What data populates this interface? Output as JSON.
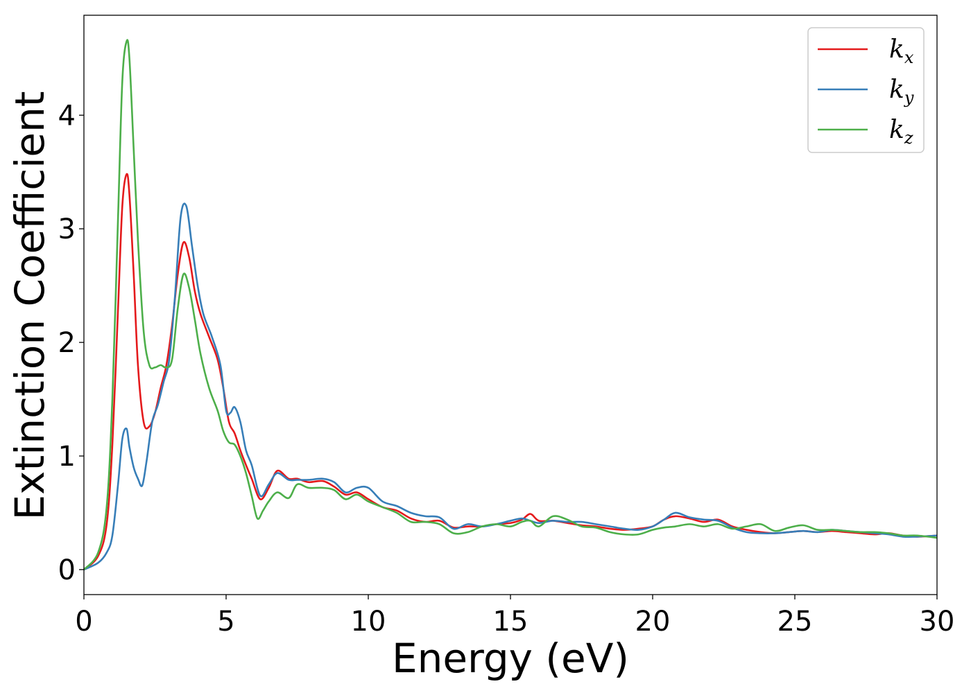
{
  "chart_data": {
    "type": "line",
    "title": "",
    "xlabel": "Energy (eV)",
    "ylabel": "Extinction Coefficient",
    "xlim": [
      0,
      30
    ],
    "ylim": [
      -0.22,
      4.88
    ],
    "xticks": [
      0,
      5,
      10,
      15,
      20,
      25,
      30
    ],
    "xtick_labels": [
      "0",
      "5",
      "10",
      "15",
      "20",
      "25",
      "30"
    ],
    "yticks": [
      0,
      1,
      2,
      3,
      4
    ],
    "ytick_labels": [
      "0",
      "1",
      "2",
      "3",
      "4"
    ],
    "grid": false,
    "legend_position": "top-right",
    "series": [
      {
        "name": "k",
        "subscript": "x",
        "color": "#e41a1c",
        "x": [
          0,
          0.5,
          0.8,
          1.0,
          1.2,
          1.35,
          1.5,
          1.6,
          1.75,
          1.9,
          2.1,
          2.3,
          2.5,
          2.7,
          2.9,
          3.1,
          3.3,
          3.5,
          3.7,
          3.9,
          4.1,
          4.4,
          4.7,
          4.9,
          5.1,
          5.3,
          5.5,
          5.7,
          5.9,
          6.2,
          6.5,
          6.8,
          7.2,
          7.5,
          7.9,
          8.4,
          8.8,
          9.2,
          9.6,
          10.0,
          10.5,
          11.0,
          11.5,
          12.0,
          12.5,
          13.0,
          13.5,
          14.0,
          14.5,
          15.0,
          15.4,
          15.7,
          16.0,
          16.5,
          17.0,
          17.5,
          18.0,
          18.5,
          19.0,
          19.5,
          20.0,
          20.4,
          20.8,
          21.3,
          21.8,
          22.3,
          22.8,
          23.3,
          23.8,
          24.3,
          24.8,
          25.3,
          25.8,
          26.3,
          26.8,
          27.3,
          27.8,
          28.3,
          28.8,
          29.3,
          30.0
        ],
        "values": [
          0.0,
          0.12,
          0.4,
          1.1,
          2.3,
          3.2,
          3.48,
          3.3,
          2.6,
          1.8,
          1.3,
          1.26,
          1.38,
          1.6,
          1.8,
          2.15,
          2.6,
          2.88,
          2.75,
          2.45,
          2.25,
          2.05,
          1.85,
          1.6,
          1.3,
          1.2,
          1.05,
          0.92,
          0.8,
          0.62,
          0.72,
          0.87,
          0.8,
          0.8,
          0.77,
          0.78,
          0.73,
          0.66,
          0.68,
          0.62,
          0.55,
          0.52,
          0.45,
          0.42,
          0.43,
          0.37,
          0.38,
          0.38,
          0.4,
          0.41,
          0.44,
          0.49,
          0.43,
          0.43,
          0.41,
          0.39,
          0.38,
          0.36,
          0.35,
          0.36,
          0.38,
          0.44,
          0.47,
          0.45,
          0.42,
          0.44,
          0.38,
          0.35,
          0.33,
          0.32,
          0.33,
          0.34,
          0.33,
          0.34,
          0.33,
          0.32,
          0.31,
          0.32,
          0.3,
          0.29,
          0.3
        ]
      },
      {
        "name": "k",
        "subscript": "y",
        "color": "#377eb8",
        "x": [
          0,
          0.5,
          0.8,
          1.0,
          1.2,
          1.35,
          1.5,
          1.6,
          1.75,
          1.9,
          2.05,
          2.2,
          2.4,
          2.6,
          2.8,
          3.0,
          3.2,
          3.4,
          3.6,
          3.8,
          4.0,
          4.2,
          4.5,
          4.8,
          5.0,
          5.15,
          5.3,
          5.5,
          5.7,
          5.9,
          6.2,
          6.5,
          6.8,
          7.2,
          7.5,
          7.9,
          8.4,
          8.8,
          9.2,
          9.6,
          10.0,
          10.5,
          11.0,
          11.5,
          12.0,
          12.5,
          13.0,
          13.5,
          14.0,
          14.5,
          15.0,
          15.4,
          15.7,
          16.0,
          16.5,
          17.0,
          17.5,
          18.0,
          18.5,
          19.0,
          19.5,
          20.0,
          20.4,
          20.8,
          21.3,
          21.8,
          22.3,
          22.8,
          23.3,
          23.8,
          24.3,
          24.8,
          25.3,
          25.8,
          26.3,
          26.8,
          27.3,
          27.8,
          28.3,
          28.8,
          29.3,
          30.0
        ],
        "values": [
          0.0,
          0.06,
          0.15,
          0.3,
          0.75,
          1.15,
          1.24,
          1.08,
          0.9,
          0.8,
          0.74,
          0.95,
          1.3,
          1.45,
          1.65,
          1.85,
          2.4,
          3.1,
          3.2,
          2.85,
          2.5,
          2.25,
          2.05,
          1.8,
          1.4,
          1.38,
          1.43,
          1.3,
          1.05,
          0.92,
          0.65,
          0.75,
          0.85,
          0.79,
          0.79,
          0.79,
          0.8,
          0.77,
          0.68,
          0.72,
          0.72,
          0.6,
          0.56,
          0.5,
          0.47,
          0.46,
          0.36,
          0.4,
          0.38,
          0.4,
          0.43,
          0.45,
          0.43,
          0.41,
          0.43,
          0.42,
          0.42,
          0.4,
          0.38,
          0.36,
          0.35,
          0.38,
          0.44,
          0.5,
          0.46,
          0.44,
          0.43,
          0.37,
          0.33,
          0.32,
          0.32,
          0.33,
          0.34,
          0.33,
          0.35,
          0.34,
          0.33,
          0.32,
          0.31,
          0.29,
          0.29,
          0.3
        ]
      },
      {
        "name": "k",
        "subscript": "z",
        "color": "#4daf4a",
        "x": [
          0,
          0.5,
          0.8,
          1.0,
          1.2,
          1.35,
          1.5,
          1.6,
          1.75,
          1.9,
          2.1,
          2.3,
          2.5,
          2.7,
          2.9,
          3.1,
          3.3,
          3.5,
          3.7,
          3.9,
          4.1,
          4.4,
          4.7,
          4.9,
          5.1,
          5.3,
          5.5,
          5.7,
          5.9,
          6.1,
          6.3,
          6.5,
          6.8,
          7.2,
          7.5,
          7.9,
          8.4,
          8.8,
          9.2,
          9.6,
          10.0,
          10.5,
          11.0,
          11.5,
          12.0,
          12.5,
          13.0,
          13.5,
          14.0,
          14.5,
          15.0,
          15.4,
          15.7,
          16.0,
          16.5,
          17.0,
          17.5,
          18.0,
          18.5,
          19.0,
          19.5,
          20.0,
          20.4,
          20.8,
          21.3,
          21.8,
          22.3,
          22.8,
          23.3,
          23.8,
          24.3,
          24.8,
          25.3,
          25.8,
          26.3,
          26.8,
          27.3,
          27.8,
          28.3,
          28.8,
          29.3,
          30.0
        ],
        "values": [
          0.0,
          0.15,
          0.55,
          1.5,
          3.1,
          4.3,
          4.65,
          4.5,
          3.7,
          2.9,
          2.1,
          1.8,
          1.78,
          1.8,
          1.78,
          1.85,
          2.3,
          2.6,
          2.48,
          2.2,
          1.9,
          1.6,
          1.4,
          1.22,
          1.12,
          1.1,
          1.0,
          0.85,
          0.65,
          0.45,
          0.52,
          0.6,
          0.68,
          0.63,
          0.75,
          0.72,
          0.72,
          0.7,
          0.62,
          0.66,
          0.6,
          0.55,
          0.5,
          0.42,
          0.42,
          0.4,
          0.32,
          0.33,
          0.38,
          0.4,
          0.38,
          0.42,
          0.43,
          0.38,
          0.47,
          0.44,
          0.38,
          0.37,
          0.33,
          0.31,
          0.31,
          0.35,
          0.37,
          0.38,
          0.4,
          0.38,
          0.4,
          0.36,
          0.38,
          0.4,
          0.34,
          0.37,
          0.39,
          0.35,
          0.35,
          0.34,
          0.33,
          0.33,
          0.32,
          0.3,
          0.3,
          0.28
        ]
      }
    ]
  }
}
